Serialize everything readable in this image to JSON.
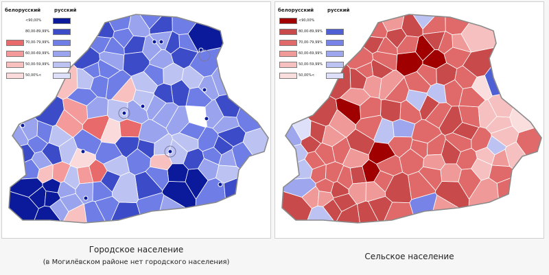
{
  "left_map": {
    "legend": {
      "header_belarusian": "белорусский",
      "header_russian": "русский",
      "rows": [
        {
          "label": "<90,00%",
          "belarusian_color": "",
          "russian_color": "#0a1a9a"
        },
        {
          "label": "80,00-89,99%",
          "belarusian_color": "",
          "russian_color": "#3c4bc8"
        },
        {
          "label": "70,00-79,99%",
          "belarusian_color": "#e86a6a",
          "russian_color": "#6f7de6"
        },
        {
          "label": "60,00-69,99%",
          "belarusian_color": "#f49a9a",
          "russian_color": "#99a3ee"
        },
        {
          "label": "50,00-59,99%",
          "belarusian_color": "#f9c0c0",
          "russian_color": "#bcc3f3"
        },
        {
          "label": "50,00%<",
          "belarusian_color": "#fadada",
          "russian_color": "#dde0f8"
        }
      ]
    },
    "caption": "Городское население",
    "note": "(в Могилёвском районе нет городского населения)"
  },
  "right_map": {
    "legend": {
      "header_belarusian": "белорусский",
      "header_russian": "русский",
      "rows": [
        {
          "label": "<90,00%",
          "belarusian_color": "#a00000",
          "russian_color": ""
        },
        {
          "label": "80,00-89,99%",
          "belarusian_color": "#c84a4a",
          "russian_color": "#4f5fd4"
        },
        {
          "label": "70,00-79,99%",
          "belarusian_color": "#e06a6a",
          "russian_color": "#7783e6"
        },
        {
          "label": "60,00-69,99%",
          "belarusian_color": "#ef9999",
          "russian_color": "#9ea7ee"
        },
        {
          "label": "50,00-59,99%",
          "belarusian_color": "#f6c0c0",
          "russian_color": "#bcc3f3"
        },
        {
          "label": "50,00%<",
          "belarusian_color": "#fadede",
          "russian_color": "#dde0f8"
        }
      ]
    },
    "caption": "Сельское население"
  }
}
